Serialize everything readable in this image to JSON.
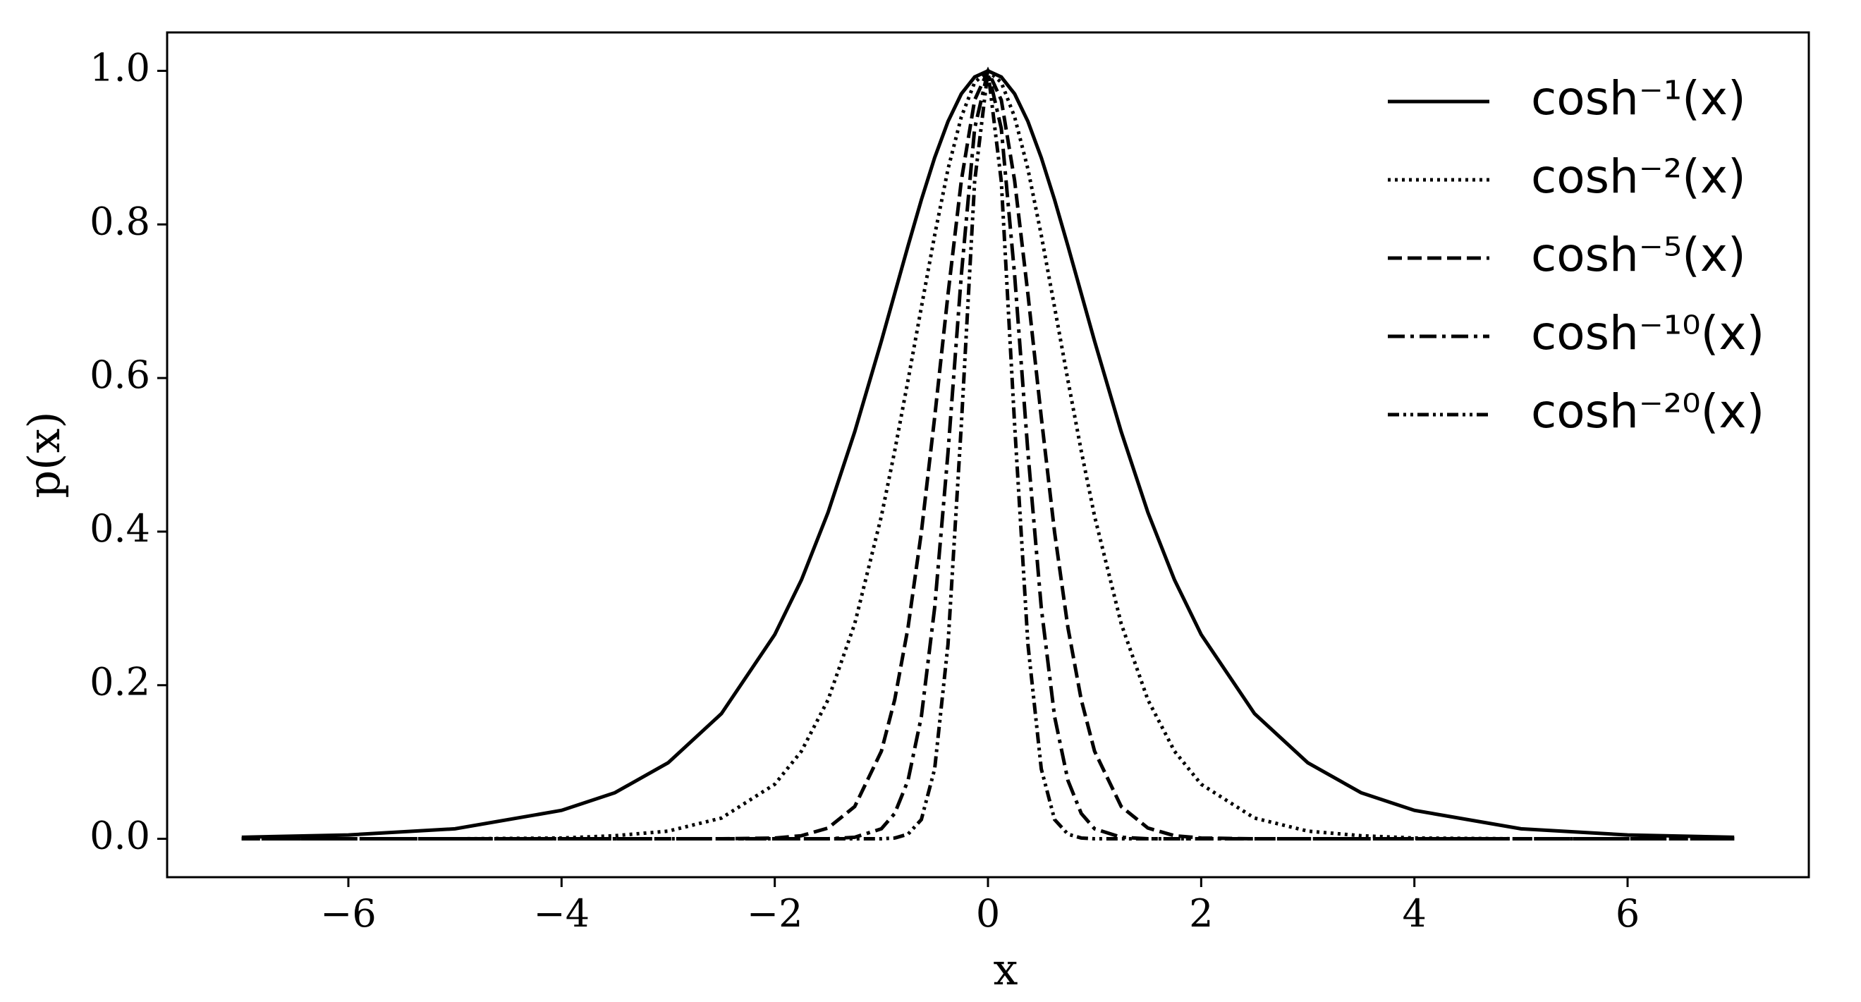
{
  "chart_data": {
    "type": "line",
    "xlabel": "x",
    "ylabel": "p(x)",
    "x": [
      -7,
      -6,
      -5,
      -4,
      -3.5,
      -3,
      -2.5,
      -2,
      -1.75,
      -1.5,
      -1.25,
      -1,
      -0.875,
      -0.75,
      -0.625,
      -0.5,
      -0.375,
      -0.25,
      -0.125,
      0,
      0.125,
      0.25,
      0.375,
      0.5,
      0.625,
      0.75,
      0.875,
      1,
      1.25,
      1.5,
      1.75,
      2,
      2.5,
      3,
      3.5,
      4,
      5,
      6,
      7
    ],
    "series": [
      {
        "name": "cosh⁻¹(x)",
        "color": "#000000",
        "linestyle": "solid",
        "values": [
          0.002,
          0.005,
          0.013,
          0.037,
          0.06,
          0.099,
          0.163,
          0.266,
          0.337,
          0.425,
          0.53,
          0.648,
          0.71,
          0.772,
          0.832,
          0.887,
          0.934,
          0.97,
          0.992,
          1,
          0.992,
          0.97,
          0.934,
          0.887,
          0.832,
          0.772,
          0.71,
          0.648,
          0.53,
          0.425,
          0.337,
          0.266,
          0.163,
          0.099,
          0.06,
          0.037,
          0.013,
          0.005,
          0.002
        ]
      },
      {
        "name": "cosh⁻²(x)",
        "color": "#000000",
        "linestyle": "dotted",
        "values": [
          0,
          0,
          0,
          0.001,
          0.004,
          0.01,
          0.027,
          0.071,
          0.114,
          0.181,
          0.28,
          0.42,
          0.505,
          0.597,
          0.692,
          0.786,
          0.872,
          0.94,
          0.985,
          1,
          0.985,
          0.94,
          0.872,
          0.786,
          0.692,
          0.597,
          0.505,
          0.42,
          0.28,
          0.181,
          0.114,
          0.071,
          0.027,
          0.01,
          0.004,
          0.001,
          0,
          0,
          0
        ]
      },
      {
        "name": "cosh⁻⁵(x)",
        "color": "#000000",
        "linestyle": "dashed",
        "values": [
          0,
          0,
          0,
          0,
          0,
          0,
          0,
          0.001,
          0.004,
          0.014,
          0.042,
          0.114,
          0.181,
          0.275,
          0.399,
          0.549,
          0.709,
          0.857,
          0.962,
          1,
          0.962,
          0.857,
          0.709,
          0.549,
          0.399,
          0.275,
          0.181,
          0.114,
          0.042,
          0.014,
          0.004,
          0.001,
          0,
          0,
          0,
          0,
          0,
          0,
          0
        ]
      },
      {
        "name": "cosh⁻¹⁰(x)",
        "color": "#000000",
        "linestyle": "dashdot",
        "values": [
          0,
          0,
          0,
          0,
          0,
          0,
          0,
          0,
          0,
          0,
          0.002,
          0.013,
          0.033,
          0.076,
          0.159,
          0.301,
          0.503,
          0.734,
          0.925,
          1,
          0.925,
          0.734,
          0.503,
          0.301,
          0.159,
          0.076,
          0.033,
          0.013,
          0.002,
          0,
          0,
          0,
          0,
          0,
          0,
          0,
          0,
          0,
          0
        ]
      },
      {
        "name": "cosh⁻²⁰(x)",
        "color": "#000000",
        "linestyle": "dashdotdot",
        "values": [
          0,
          0,
          0,
          0,
          0,
          0,
          0,
          0,
          0,
          0,
          0,
          0,
          0.001,
          0.006,
          0.025,
          0.091,
          0.253,
          0.539,
          0.856,
          1,
          0.856,
          0.539,
          0.253,
          0.091,
          0.025,
          0.006,
          0.001,
          0,
          0,
          0,
          0,
          0,
          0,
          0,
          0,
          0,
          0,
          0,
          0
        ]
      }
    ],
    "xlim": [
      -7.7,
      7.7
    ],
    "ylim": [
      -0.05,
      1.05
    ],
    "xticks": [
      {
        "value": -6,
        "label": "−6"
      },
      {
        "value": -4,
        "label": "−4"
      },
      {
        "value": -2,
        "label": "−2"
      },
      0,
      2,
      4,
      6
    ],
    "yticks": [
      {
        "value": 0,
        "label": "0.0"
      },
      0.2,
      0.4,
      0.6,
      0.8,
      {
        "value": 1,
        "label": "1.0"
      }
    ],
    "grid": false,
    "legend": "upper right"
  }
}
